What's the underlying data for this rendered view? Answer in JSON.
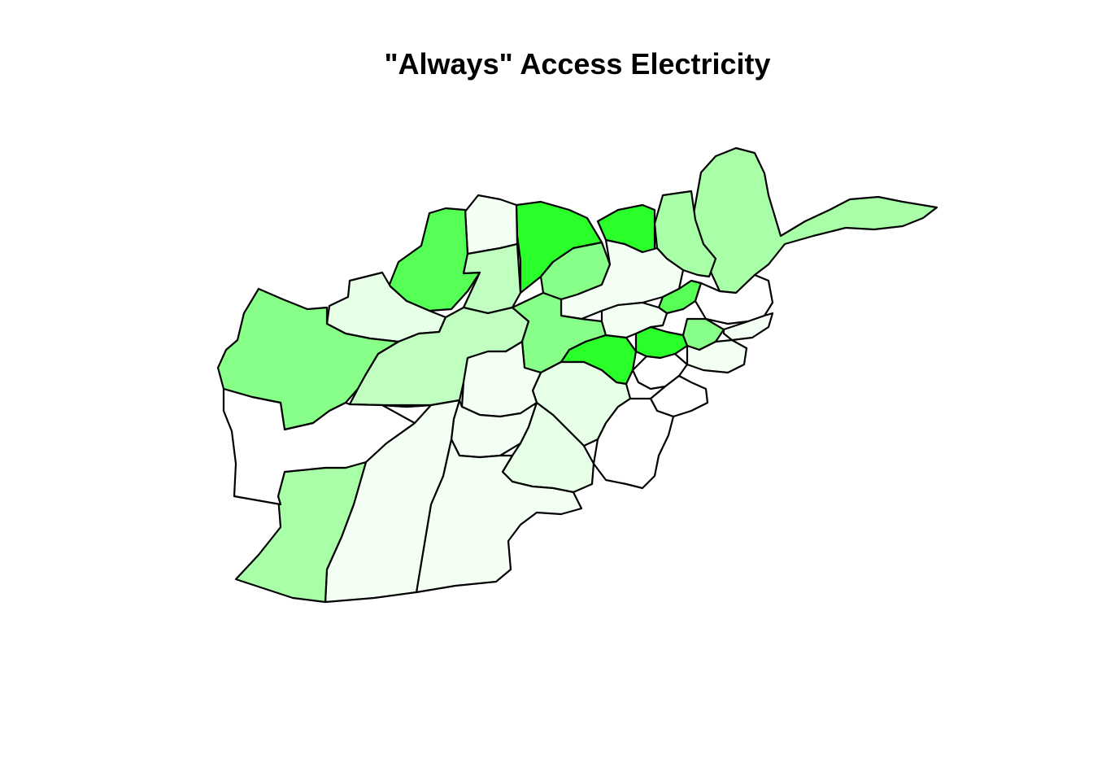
{
  "title": "\"Always\" Access Electricity",
  "legend": "none",
  "colors": {
    "level_0": "#ffffff",
    "level_1": "#f4fff4",
    "level_2": "#e6ffe6",
    "level_3": "#c0ffc0",
    "level_4": "#a8ffa8",
    "level_5": "#88ff88",
    "level_6": "#55ff55",
    "level_7": "#2aff2a",
    "border": "#000000"
  }
}
